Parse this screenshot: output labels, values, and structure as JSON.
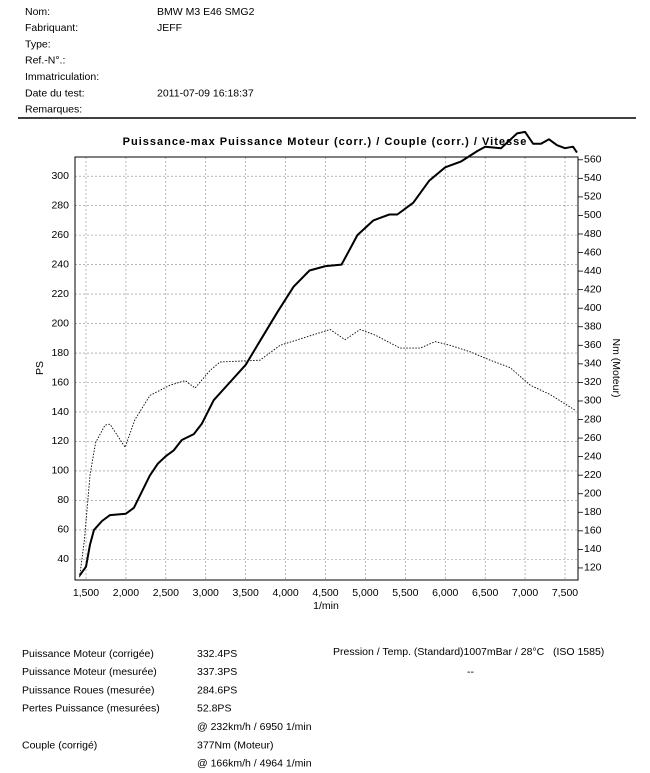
{
  "header": {
    "fields": [
      {
        "label": "Nom:",
        "value": "BMW M3 E46 SMG2"
      },
      {
        "label": "Fabriquant:",
        "value": "JEFF"
      },
      {
        "label": "Type:"
      },
      {
        "label": "Ref.-N°.:"
      },
      {
        "label": "Immatriculation:"
      },
      {
        "label": "Date du test:",
        "value": "2011-07-09 16:18:37"
      },
      {
        "label": "Remarques:"
      }
    ]
  },
  "chart_data": {
    "type": "line",
    "title": "Puissance-max Puissance Moteur (corr.) / Couple (corr.) / Vitesse",
    "x_label": "1/min",
    "y_label": "PS",
    "y2_label": "Nm (Moteur)",
    "xlim": [
      1362,
      7663
    ],
    "ylim": [
      26,
      313
    ],
    "y2lim": [
      107,
      563
    ],
    "xticks": [
      {
        "value": 1500,
        "label": "1,500"
      },
      {
        "value": 2000,
        "label": "2,000"
      },
      {
        "value": 2500,
        "label": "2,500"
      },
      {
        "value": 3000,
        "label": "3,000"
      },
      {
        "value": 3500,
        "label": "3,500"
      },
      {
        "value": 4000,
        "label": "4,000"
      },
      {
        "value": 4500,
        "label": "4,500"
      },
      {
        "value": 5000,
        "label": "5,000"
      },
      {
        "value": 5500,
        "label": "5,500"
      },
      {
        "value": 6000,
        "label": "6,000"
      },
      {
        "value": 6500,
        "label": "6,500"
      },
      {
        "value": 7000,
        "label": "7,000"
      },
      {
        "value": 7500,
        "label": "7,500"
      }
    ],
    "yticks": [
      40,
      60,
      80,
      100,
      120,
      140,
      160,
      180,
      200,
      220,
      240,
      260,
      280,
      300
    ],
    "y2ticks": [
      120,
      140,
      160,
      180,
      200,
      220,
      240,
      260,
      280,
      300,
      320,
      340,
      360,
      380,
      400,
      420,
      440,
      460,
      480,
      500,
      520,
      540,
      560
    ],
    "grid": true,
    "series": [
      {
        "name": "Puissance Moteur",
        "color": "#000000",
        "line_style": "solid",
        "x": [
          1420,
          1500,
          1550,
          1600,
          1700,
          1800,
          2000,
          2100,
          2200,
          2300,
          2400,
          2500,
          2600,
          2700,
          2850,
          2950,
          3100,
          3300,
          3500,
          3700,
          3900,
          4100,
          4300,
          4500,
          4700,
          4800,
          4900,
          5100,
          5300,
          5400,
          5600,
          5800,
          6000,
          6200,
          6400,
          6500,
          6700,
          6900,
          7000,
          7100,
          7200,
          7300,
          7400,
          7500,
          7600,
          7650
        ],
        "values": [
          29,
          35,
          50,
          60,
          66,
          70,
          71,
          75,
          86,
          97,
          105,
          110,
          114,
          121,
          125,
          132,
          148,
          160,
          172,
          190,
          208,
          225,
          236,
          239,
          240,
          250,
          260,
          270,
          274,
          274,
          282,
          297,
          306,
          310,
          317,
          320,
          319,
          329,
          330,
          322,
          322,
          325,
          321,
          319,
          320,
          316
        ]
      },
      {
        "name": "Couple",
        "color": "#000000",
        "line_style": "dotted",
        "axis": "y2",
        "x": [
          1420,
          1480,
          1550,
          1620,
          1738,
          1800,
          1989,
          2114,
          2302,
          2553,
          2741,
          2866,
          3054,
          3179,
          3680,
          3931,
          4558,
          4746,
          4934,
          5122,
          5435,
          5686,
          5874,
          6062,
          6312,
          6563,
          6813,
          7064,
          7314,
          7627
        ],
        "values": [
          110,
          150,
          220,
          255,
          274,
          275,
          250,
          280,
          306,
          317,
          322,
          314,
          333,
          342,
          344,
          360,
          377,
          366,
          377,
          371,
          357,
          357,
          364,
          360,
          353,
          344,
          336,
          317,
          307,
          290
        ]
      }
    ]
  },
  "results": {
    "rows": [
      {
        "label": "Puissance Moteur (corrigée)",
        "value": "332.4PS"
      },
      {
        "label": "Puissance Moteur (mesurée)",
        "value": "337.3PS"
      },
      {
        "label": "Puissance Roues (mesurée)",
        "value": "284.6PS"
      },
      {
        "label": "Pertes Puissance (mesurées)",
        "value": "52.8PS"
      },
      {
        "value": "@ 232km/h / 6950 1/min"
      },
      {
        "label": "Couple (corrigé)",
        "value": "377Nm (Moteur)"
      },
      {
        "value": "@ 166km/h / 4964 1/min"
      }
    ],
    "conditions": "Pression / Temp. (Standard)1007mBar / 28°C   (ISO 1585)",
    "conditions_note": "--"
  }
}
